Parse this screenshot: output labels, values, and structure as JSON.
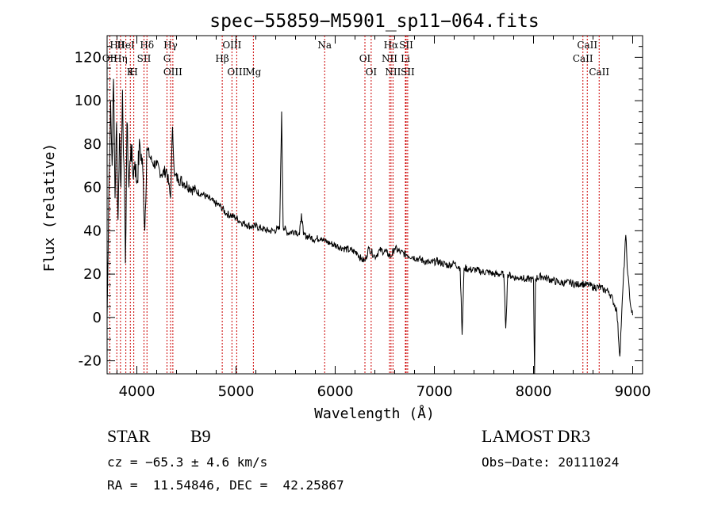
{
  "chart_data": {
    "type": "line",
    "title": "spec−55859−M5901_sp11−064.fits",
    "xlabel": "Wavelength (Å)",
    "ylabel": "Flux (relative)",
    "xlim": [
      3700,
      9100
    ],
    "ylim": [
      -26,
      130
    ],
    "xticks": [
      4000,
      5000,
      6000,
      7000,
      8000,
      9000
    ],
    "yticks": [
      -20,
      0,
      20,
      40,
      60,
      80,
      100,
      120
    ],
    "series": [
      {
        "name": "spectrum",
        "points": [
          [
            3700,
            0
          ],
          [
            3710,
            30
          ],
          [
            3720,
            65
          ],
          [
            3735,
            100
          ],
          [
            3750,
            70
          ],
          [
            3765,
            110
          ],
          [
            3780,
            55
          ],
          [
            3795,
            90
          ],
          [
            3810,
            45
          ],
          [
            3825,
            85
          ],
          [
            3840,
            60
          ],
          [
            3855,
            105
          ],
          [
            3870,
            70
          ],
          [
            3885,
            25
          ],
          [
            3900,
            90
          ],
          [
            3920,
            60
          ],
          [
            3940,
            80
          ],
          [
            3960,
            66
          ],
          [
            3980,
            72
          ],
          [
            4000,
            62
          ],
          [
            4030,
            80
          ],
          [
            4060,
            68
          ],
          [
            4080,
            40
          ],
          [
            4100,
            78
          ],
          [
            4150,
            72
          ],
          [
            4200,
            70
          ],
          [
            4250,
            66
          ],
          [
            4300,
            68
          ],
          [
            4340,
            55
          ],
          [
            4360,
            88
          ],
          [
            4380,
            65
          ],
          [
            4420,
            64
          ],
          [
            4480,
            62
          ],
          [
            4540,
            60
          ],
          [
            4600,
            58
          ],
          [
            4660,
            57
          ],
          [
            4720,
            55
          ],
          [
            4780,
            53
          ],
          [
            4850,
            51
          ],
          [
            4900,
            48
          ],
          [
            4950,
            47
          ],
          [
            5000,
            46
          ],
          [
            5050,
            44
          ],
          [
            5100,
            43
          ],
          [
            5150,
            42
          ],
          [
            5200,
            42
          ],
          [
            5260,
            41
          ],
          [
            5320,
            40
          ],
          [
            5380,
            40
          ],
          [
            5440,
            41
          ],
          [
            5460,
            95
          ],
          [
            5475,
            42
          ],
          [
            5520,
            39
          ],
          [
            5600,
            40
          ],
          [
            5640,
            38
          ],
          [
            5660,
            48
          ],
          [
            5680,
            38
          ],
          [
            5750,
            37
          ],
          [
            5800,
            36
          ],
          [
            5860,
            37
          ],
          [
            5900,
            35
          ],
          [
            5960,
            34
          ],
          [
            6020,
            33
          ],
          [
            6080,
            32
          ],
          [
            6150,
            31
          ],
          [
            6220,
            30
          ],
          [
            6260,
            27
          ],
          [
            6300,
            26
          ],
          [
            6340,
            32
          ],
          [
            6400,
            28
          ],
          [
            6450,
            31
          ],
          [
            6520,
            30
          ],
          [
            6560,
            28
          ],
          [
            6600,
            32
          ],
          [
            6660,
            30
          ],
          [
            6720,
            29
          ],
          [
            6780,
            28
          ],
          [
            6840,
            27
          ],
          [
            6900,
            26
          ],
          [
            6960,
            25
          ],
          [
            7020,
            26
          ],
          [
            7080,
            25
          ],
          [
            7140,
            24
          ],
          [
            7200,
            25
          ],
          [
            7260,
            23
          ],
          [
            7280,
            -8
          ],
          [
            7300,
            23
          ],
          [
            7360,
            22
          ],
          [
            7420,
            22
          ],
          [
            7480,
            21
          ],
          [
            7540,
            21
          ],
          [
            7600,
            20
          ],
          [
            7660,
            20
          ],
          [
            7700,
            20
          ],
          [
            7720,
            -5
          ],
          [
            7740,
            20
          ],
          [
            7780,
            19
          ],
          [
            7840,
            18
          ],
          [
            7880,
            19
          ],
          [
            7920,
            17
          ],
          [
            7960,
            18
          ],
          [
            8000,
            17
          ],
          [
            8010,
            -26
          ],
          [
            8020,
            18
          ],
          [
            8080,
            19
          ],
          [
            8140,
            18
          ],
          [
            8200,
            17
          ],
          [
            8260,
            16
          ],
          [
            8320,
            16
          ],
          [
            8380,
            16
          ],
          [
            8440,
            15
          ],
          [
            8480,
            16
          ],
          [
            8520,
            15
          ],
          [
            8560,
            15
          ],
          [
            8600,
            14
          ],
          [
            8660,
            14
          ],
          [
            8700,
            13
          ],
          [
            8760,
            12
          ],
          [
            8800,
            8
          ],
          [
            8840,
            3
          ],
          [
            8870,
            -18
          ],
          [
            8900,
            12
          ],
          [
            8930,
            38
          ],
          [
            8950,
            20
          ],
          [
            8980,
            5
          ],
          [
            9000,
            1
          ]
        ]
      }
    ],
    "emission_lines": [
      {
        "name": "Hθ",
        "wavelength": 3798
      },
      {
        "name": "OII",
        "wavelength": 3727
      },
      {
        "name": "K",
        "wavelength": 3934
      },
      {
        "name": "HeI",
        "wavelength": 3889
      },
      {
        "name": "Hη",
        "wavelength": 3835
      },
      {
        "name": "H",
        "wavelength": 3969
      },
      {
        "name": "Hδ",
        "wavelength": 4102
      },
      {
        "name": "SII",
        "wavelength": 4072
      },
      {
        "name": "OIII",
        "wavelength": 4363
      },
      {
        "name": "Hγ",
        "wavelength": 4340
      },
      {
        "name": "G",
        "wavelength": 4304
      },
      {
        "name": "OIII",
        "wavelength": 5007
      },
      {
        "name": "OIII",
        "wavelength": 4959
      },
      {
        "name": "Hβ",
        "wavelength": 4861
      },
      {
        "name": "Mg",
        "wavelength": 5175
      },
      {
        "name": "Na",
        "wavelength": 5894
      },
      {
        "name": "OI",
        "wavelength": 6300
      },
      {
        "name": "OI",
        "wavelength": 6363
      },
      {
        "name": "Hα",
        "wavelength": 6563
      },
      {
        "name": "NII",
        "wavelength": 6548
      },
      {
        "name": "NII",
        "wavelength": 6583
      },
      {
        "name": "SII",
        "wavelength": 6716
      },
      {
        "name": "Li",
        "wavelength": 6708
      },
      {
        "name": "SII",
        "wavelength": 6731
      },
      {
        "name": "CaII",
        "wavelength": 8542
      },
      {
        "name": "CaII",
        "wavelength": 8498
      },
      {
        "name": "CaII",
        "wavelength": 8662
      }
    ]
  },
  "info": {
    "class": "STAR",
    "subclass": "B9",
    "survey": "LAMOST DR3",
    "cz": "cz = −65.3 ± 4.6 km/s",
    "obs_date": "Obs−Date: 20111024",
    "radec": "RA =  11.54846, DEC =  42.25867"
  },
  "colors": {
    "line": "#000000",
    "marker": "#cc0000",
    "background": "#ffffff"
  }
}
